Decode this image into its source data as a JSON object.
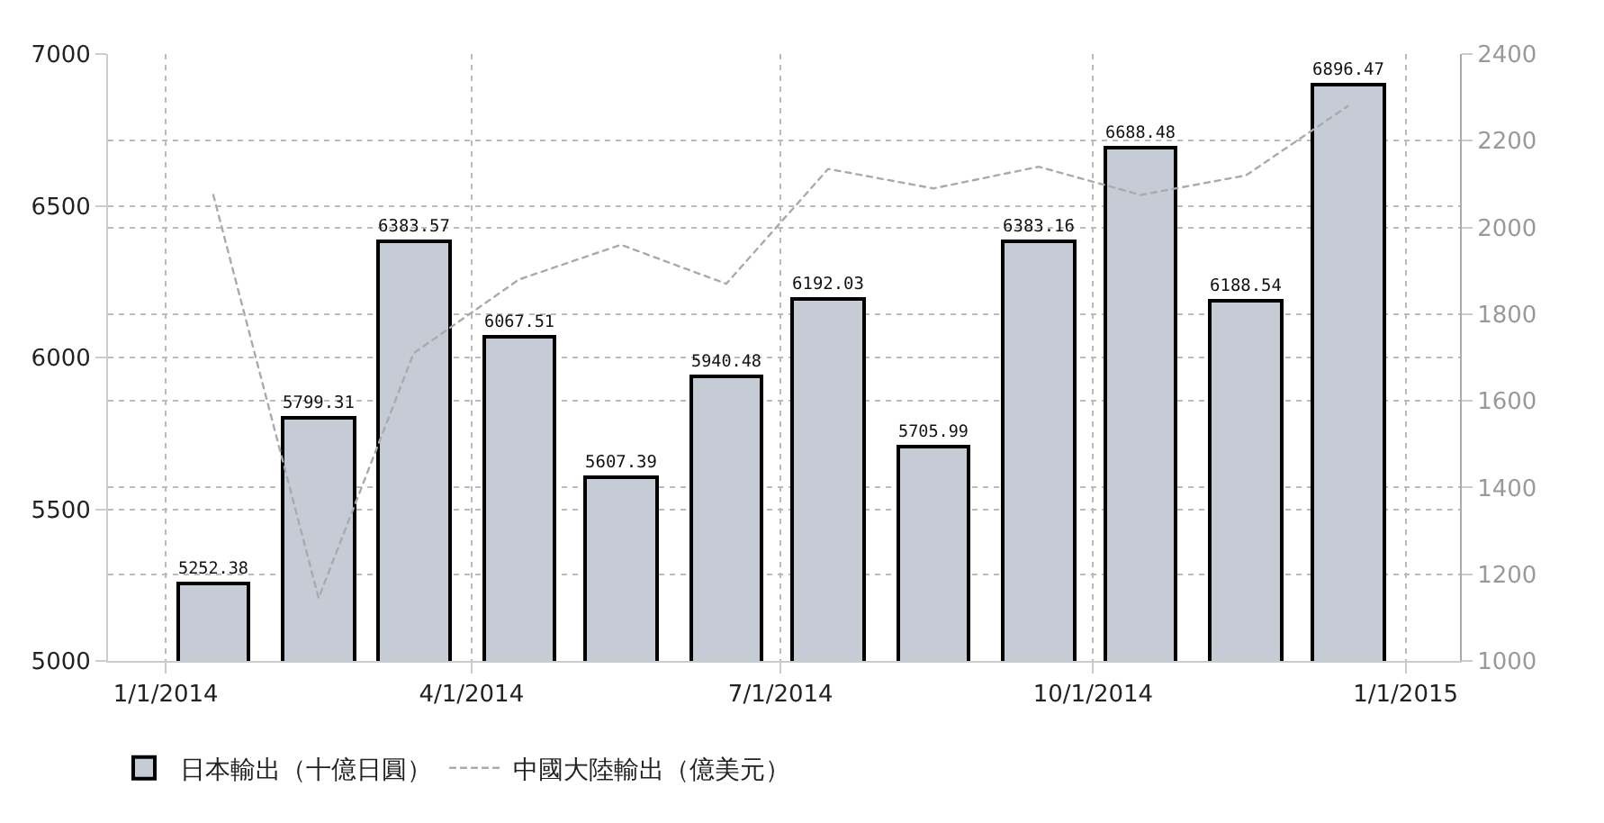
{
  "chart_data": {
    "type": "bar",
    "x": [
      "2014-01-15",
      "2014-02-15",
      "2014-03-15",
      "2014-04-15",
      "2014-05-15",
      "2014-06-15",
      "2014-07-15",
      "2014-08-15",
      "2014-09-15",
      "2014-10-15",
      "2014-11-15",
      "2014-12-15"
    ],
    "series": [
      {
        "name": "日本輸出（十億日圓）",
        "color": "#c5ccd6",
        "values": [
          5252.38,
          5799.31,
          6383.57,
          6067.51,
          5607.39,
          5940.48,
          6192.03,
          5705.99,
          6383.16,
          6688.48,
          6188.54,
          6896.47
        ],
        "value_labels": [
          "5252.38",
          "5799.31",
          "6383.57",
          "6067.51",
          "5607.39",
          "5940.48",
          "6192.03",
          "5705.99",
          "6383.16",
          "6688.48",
          "6188.54",
          "6896.47"
        ]
      },
      {
        "name": "中國大陸輸出（億美元）",
        "type": "line",
        "axis": "y2",
        "color": "#aaaaaa",
        "line_style": "dotted",
        "values": [
          2075,
          1145,
          1710,
          1880,
          1960,
          1870,
          2135,
          2090,
          2140,
          2075,
          2120,
          2280
        ]
      }
    ],
    "xlim": [
      "2013-12-15",
      "2015-01-17"
    ],
    "xticks": [
      {
        "value": "2014-01-01",
        "label": "1/1/2014"
      },
      {
        "value": "2014-04-01",
        "label": "4/1/2014"
      },
      {
        "value": "2014-07-01",
        "label": "7/1/2014"
      },
      {
        "value": "2014-10-01",
        "label": "10/1/2014"
      },
      {
        "value": "2015-01-01",
        "label": "1/1/2015"
      }
    ],
    "ylim": [
      5000,
      7000
    ],
    "yticks": [
      5000,
      5500,
      6000,
      6500,
      7000
    ],
    "y2lim": [
      1000,
      2400
    ],
    "y2ticks": [
      1000,
      1200,
      1400,
      1600,
      1800,
      2000,
      2200,
      2400
    ],
    "grid": true,
    "legend": "bottom left",
    "marker": "none"
  }
}
